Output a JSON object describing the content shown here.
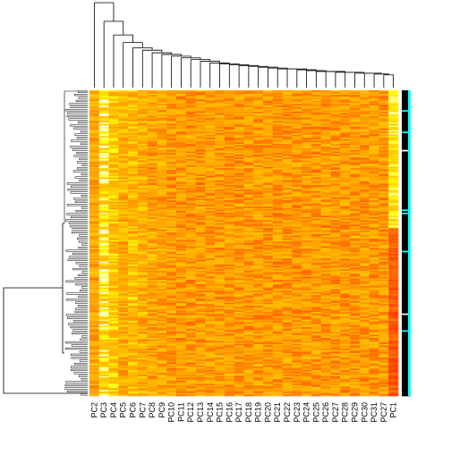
{
  "chart_data": {
    "type": "heatmap",
    "title": "",
    "xlabel": "",
    "ylabel": "",
    "columns": [
      "PC2",
      "PC3",
      "PC4",
      "PC5",
      "PC6",
      "PC7",
      "PC8",
      "PC9",
      "PC10",
      "PC11",
      "PC12",
      "PC13",
      "PC14",
      "PC15",
      "PC16",
      "PC17",
      "PC18",
      "PC19",
      "PC20",
      "PC21",
      "PC22",
      "PC23",
      "PC24",
      "PC25",
      "PC26",
      "PC27",
      "PC28",
      "PC29",
      "PC30",
      "PC31",
      "PC27",
      "PC1"
    ],
    "row_count": 200,
    "color_scale": {
      "name": "heat",
      "low": "#ff0000",
      "mid": "#ffa500",
      "high": "#ffffcc"
    },
    "column_profile": [
      0.55,
      0.85,
      0.7,
      0.6,
      0.65,
      0.6,
      0.55,
      0.55,
      0.5,
      0.5,
      0.5,
      0.5,
      0.5,
      0.5,
      0.5,
      0.5,
      0.5,
      0.5,
      0.5,
      0.5,
      0.5,
      0.5,
      0.5,
      0.5,
      0.5,
      0.5,
      0.5,
      0.5,
      0.5,
      0.5,
      0.5,
      0.3
    ],
    "column_dendrogram_heights": [
      1.0,
      0.78,
      0.62,
      0.53,
      0.47,
      0.44,
      0.41,
      0.39,
      0.37,
      0.35,
      0.33,
      0.31,
      0.29,
      0.28,
      0.27,
      0.26,
      0.25,
      0.24,
      0.23,
      0.22,
      0.22,
      0.21,
      0.2,
      0.19,
      0.19,
      0.18,
      0.18,
      0.17,
      0.17,
      0.16,
      0.15
    ],
    "side_bar_colors": [
      "#000000",
      "#00ffff",
      "#ffffff"
    ],
    "grid": false,
    "legend": "none"
  }
}
